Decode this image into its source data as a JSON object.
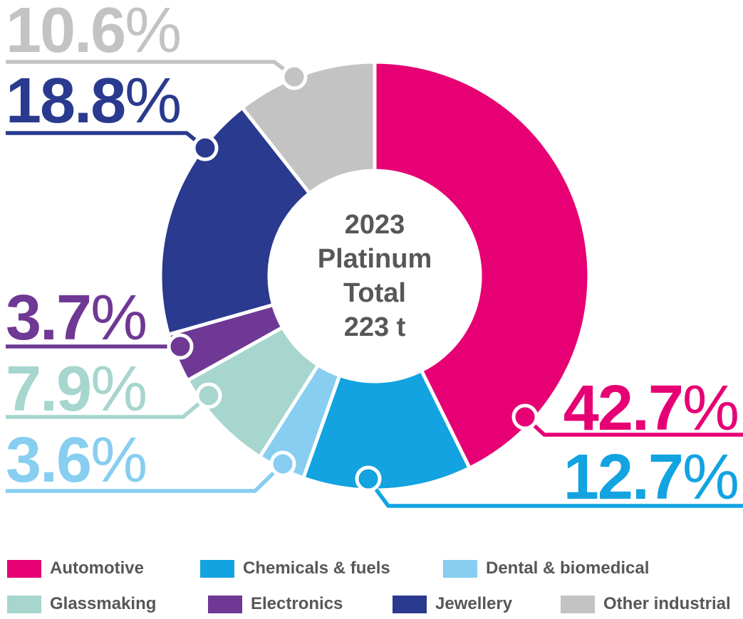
{
  "chart_data": {
    "type": "pie",
    "subtype": "donut",
    "title": "2023 Platinum Total 223 t",
    "center_label_lines": [
      "2023",
      "Platinum",
      "Total",
      "223 t"
    ],
    "year": "2023",
    "metal": "Platinum",
    "total": "223 t",
    "unit": "%",
    "text_color": "#575756",
    "legend_position": "bottom",
    "segments": [
      {
        "label": "Automotive",
        "value": 42.7,
        "value_label": "42.7",
        "color": "#E60074"
      },
      {
        "label": "Chemicals & fuels",
        "value": 12.7,
        "value_label": "12.7",
        "color": "#12A3E0"
      },
      {
        "label": "Dental & biomedical",
        "value": 3.6,
        "value_label": "3.6",
        "color": "#87CEF0"
      },
      {
        "label": "Glassmaking",
        "value": 7.9,
        "value_label": "7.9",
        "color": "#A6D6CE"
      },
      {
        "label": "Electronics",
        "value": 3.7,
        "value_label": "3.7",
        "color": "#6F3894"
      },
      {
        "label": "Jewellery",
        "value": 18.8,
        "value_label": "18.8",
        "color": "#2A3A8E"
      },
      {
        "label": "Other industrial",
        "value": 10.6,
        "value_label": "10.6",
        "color": "#C3C3C3"
      }
    ]
  }
}
